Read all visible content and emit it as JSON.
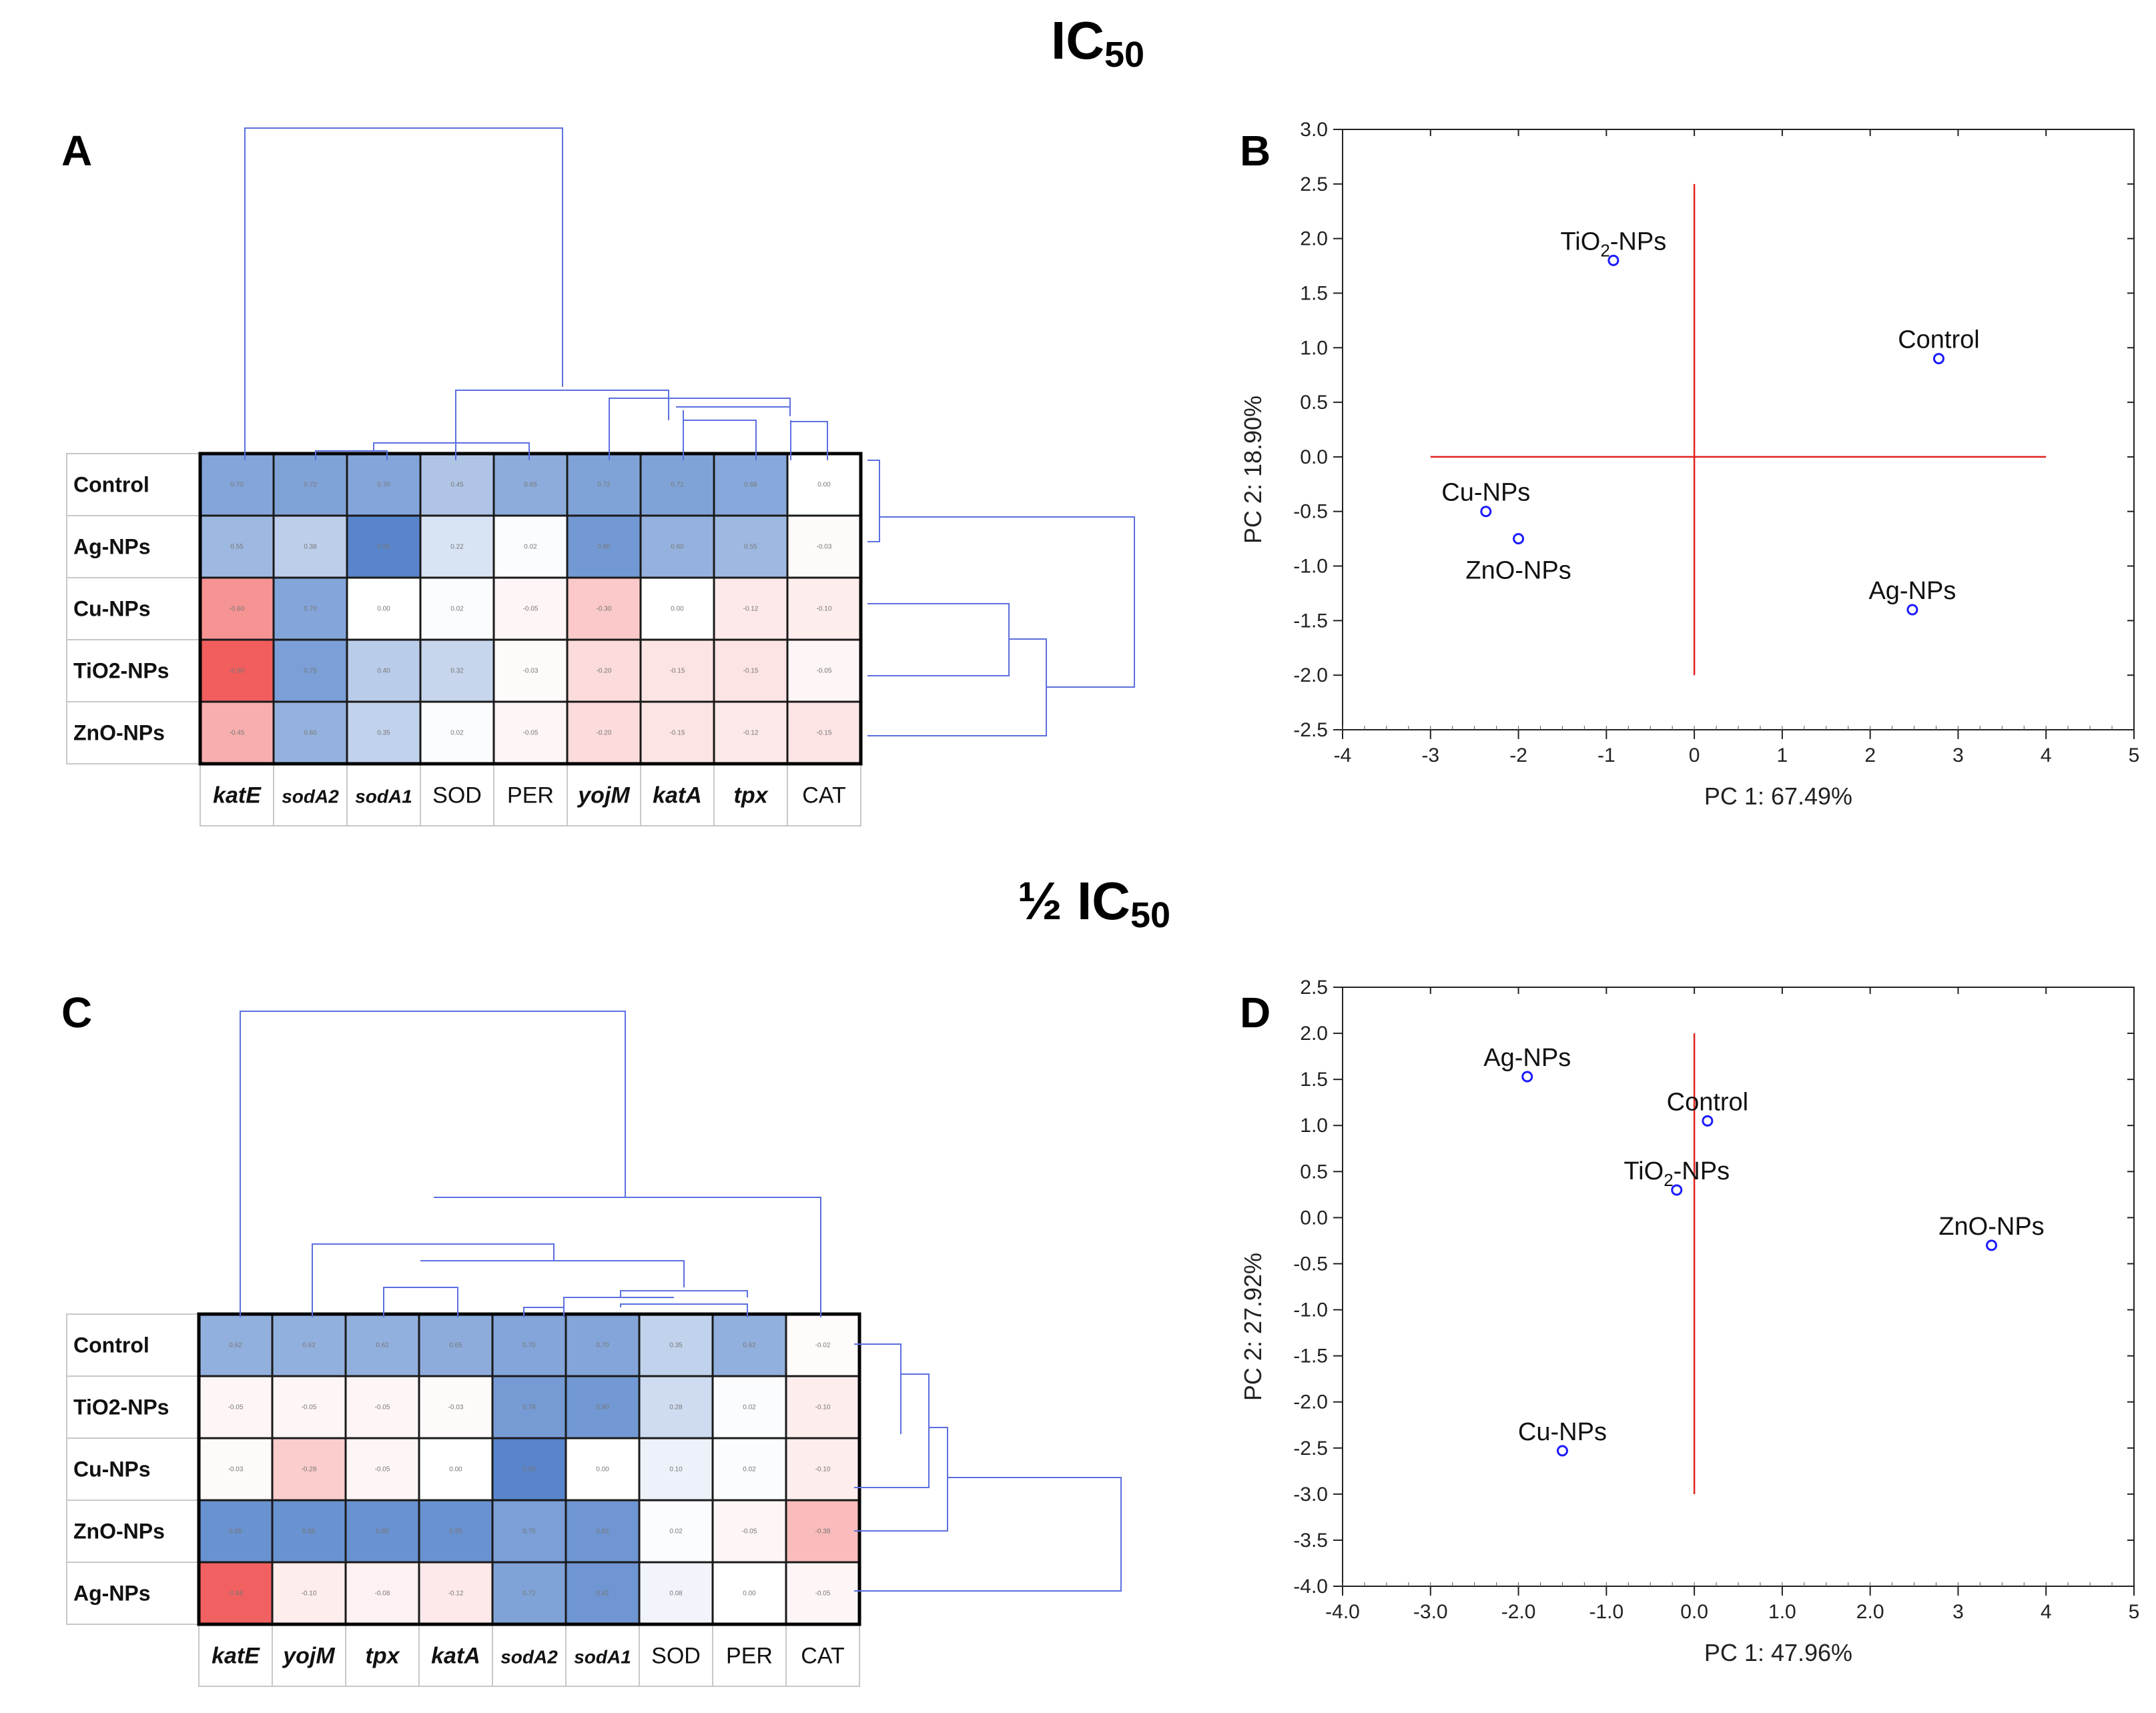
{
  "titles": {
    "top": "IC",
    "top_sub": "50",
    "bottom": "½ IC",
    "bottom_sub": "50"
  },
  "panel_letters": [
    "A",
    "B",
    "C",
    "D"
  ],
  "colors": {
    "high": "#4f7fc8",
    "mid": "#ffffff",
    "low": "#f04b4b",
    "dendrogram": "#5b6fe0",
    "point": "#1a1aff",
    "ref_line": "#e02020"
  },
  "chart_data": [
    {
      "id": "A",
      "type": "heatmap",
      "rows": [
        "Control",
        "Ag-NPs",
        "Cu-NPs",
        "TiO2-NPs",
        "ZnO-NPs"
      ],
      "columns": [
        {
          "label": "katE",
          "style": "it"
        },
        {
          "label": "sodA2",
          "style": "sm"
        },
        {
          "label": "sodA1",
          "style": "sm"
        },
        {
          "label": "SOD",
          "style": "n"
        },
        {
          "label": "PER",
          "style": "n"
        },
        {
          "label": "yojM",
          "style": "it"
        },
        {
          "label": "katA",
          "style": "it"
        },
        {
          "label": "tpx",
          "style": "it"
        },
        {
          "label": "CAT",
          "style": "n"
        }
      ],
      "values": [
        [
          0.7,
          0.72,
          0.7,
          0.45,
          0.65,
          0.72,
          0.72,
          0.68,
          0.0
        ],
        [
          0.55,
          0.38,
          0.95,
          0.22,
          0.02,
          0.8,
          0.6,
          0.55,
          -0.03
        ],
        [
          -0.6,
          0.7,
          0.0,
          0.02,
          -0.05,
          -0.3,
          0.0,
          -0.12,
          -0.1
        ],
        [
          -0.9,
          0.75,
          0.4,
          0.32,
          -0.03,
          -0.2,
          -0.15,
          -0.15,
          -0.05
        ],
        [
          -0.45,
          0.6,
          0.35,
          0.02,
          -0.05,
          -0.2,
          -0.15,
          -0.12,
          -0.15
        ]
      ]
    },
    {
      "id": "B",
      "type": "scatter",
      "xlabel": "PC 1: 67.49%",
      "ylabel": "PC 2: 18.90%",
      "xlim": [
        -4,
        5
      ],
      "ylim": [
        -2.5,
        3.0
      ],
      "xticks": [
        "-4",
        "-3",
        "-2",
        "-1",
        "0",
        "1",
        "2",
        "3",
        "4",
        "5"
      ],
      "yticks": [
        "3.0",
        "2.5",
        "2.0",
        "1.5",
        "1.0",
        "0.5",
        "0.0",
        "-0.5",
        "-1.0",
        "-1.5",
        "-2.0",
        "-2.5"
      ],
      "points": [
        {
          "label": "TiO2-NPs",
          "base": "TiO",
          "sub": "2",
          "rest": "-NPs",
          "x": -0.92,
          "y": 1.8,
          "pos": "above"
        },
        {
          "label": "Control",
          "x": 2.78,
          "y": 0.9,
          "pos": "above"
        },
        {
          "label": "Cu-NPs",
          "x": -2.37,
          "y": -0.5,
          "pos": "above"
        },
        {
          "label": "ZnO-NPs",
          "x": -2.0,
          "y": -0.75,
          "pos": "below"
        },
        {
          "label": "Ag-NPs",
          "x": 2.48,
          "y": -1.4,
          "pos": "above"
        }
      ]
    },
    {
      "id": "C",
      "type": "heatmap",
      "rows": [
        "Control",
        "TiO2-NPs",
        "Cu-NPs",
        "ZnO-NPs",
        "Ag-NPs"
      ],
      "columns": [
        {
          "label": "katE",
          "style": "it"
        },
        {
          "label": "yojM",
          "style": "it"
        },
        {
          "label": "tpx",
          "style": "it"
        },
        {
          "label": "katA",
          "style": "it"
        },
        {
          "label": "sodA2",
          "style": "sm"
        },
        {
          "label": "sodA1",
          "style": "sm"
        },
        {
          "label": "SOD",
          "style": "n"
        },
        {
          "label": "PER",
          "style": "n"
        },
        {
          "label": "CAT",
          "style": "n"
        }
      ],
      "values": [
        [
          0.62,
          0.62,
          0.62,
          0.65,
          0.7,
          0.7,
          0.35,
          0.62,
          -0.02
        ],
        [
          -0.05,
          -0.05,
          -0.05,
          -0.03,
          0.78,
          0.8,
          0.28,
          0.02,
          -0.1
        ],
        [
          -0.03,
          -0.28,
          -0.05,
          0.0,
          0.95,
          0.0,
          0.1,
          0.02,
          -0.1
        ],
        [
          0.85,
          0.85,
          0.85,
          0.85,
          0.75,
          0.82,
          0.02,
          -0.05,
          -0.38
        ],
        [
          -0.88,
          -0.1,
          -0.08,
          -0.12,
          0.72,
          0.82,
          0.08,
          0.0,
          -0.05
        ]
      ]
    },
    {
      "id": "D",
      "type": "scatter",
      "xlabel": "PC 1: 47.96%",
      "ylabel": "PC 2: 27.92%",
      "xlim": [
        -4,
        5
      ],
      "ylim": [
        -4.0,
        2.5
      ],
      "xticks": [
        "-4.0",
        "-3.0",
        "-2.0",
        "-1.0",
        "0.0",
        "1.0",
        "2.0",
        "3",
        "4",
        "5"
      ],
      "yticks": [
        "2.5",
        "2.0",
        "1.5",
        "1.0",
        "0.5",
        "0.0",
        "-0.5",
        "-1.0",
        "-1.5",
        "-2.0",
        "-2.5",
        "-3.0",
        "-3.5",
        "-4.0"
      ],
      "points": [
        {
          "label": "Ag-NPs",
          "x": -1.9,
          "y": 1.53,
          "pos": "above"
        },
        {
          "label": "Control",
          "x": 0.15,
          "y": 1.05,
          "pos": "above"
        },
        {
          "label": "TiO2-NPs",
          "base": "TiO",
          "sub": "2",
          "rest": "-NPs",
          "x": -0.2,
          "y": 0.3,
          "pos": "above"
        },
        {
          "label": "ZnO-NPs",
          "x": 3.38,
          "y": -0.3,
          "pos": "above"
        },
        {
          "label": "Cu-NPs",
          "x": -1.5,
          "y": -2.53,
          "pos": "above"
        }
      ]
    }
  ]
}
